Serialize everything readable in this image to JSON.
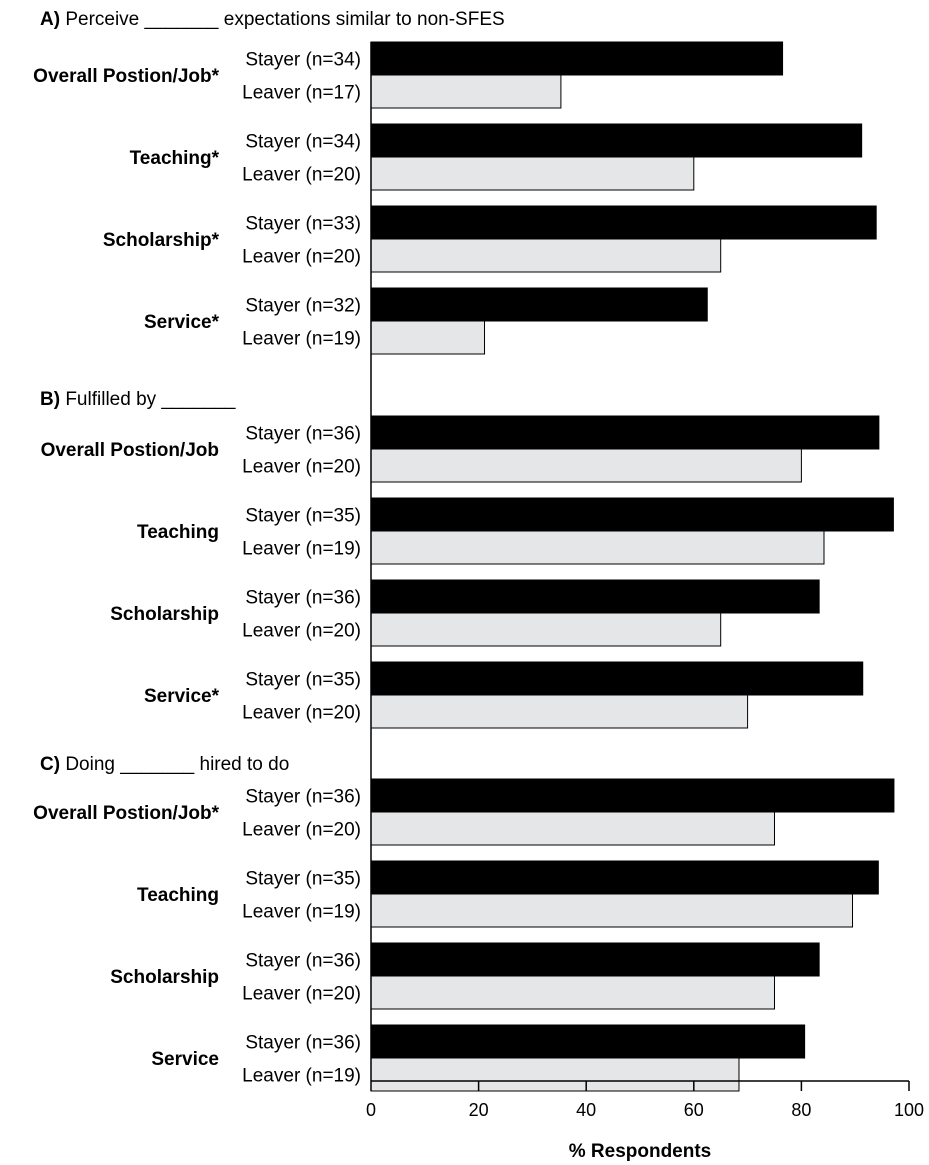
{
  "chart_data": {
    "type": "bar",
    "orientation": "horizontal",
    "xlabel": "% Respondents",
    "xlim": [
      0,
      100
    ],
    "xticks": [
      0,
      20,
      40,
      60,
      80,
      100
    ],
    "colors": {
      "Stayer": "#000000",
      "Leaver": "#e4e6e7",
      "outline": "#000000"
    },
    "panels": [
      {
        "letter": "A)",
        "title": "Perceive _______ expectations similar to non-SFES",
        "groups": [
          {
            "label": "Overall Postion/Job*",
            "bars": [
              {
                "series": "Stayer",
                "label": "Stayer (n=34)",
                "value": 76.5
              },
              {
                "series": "Leaver",
                "label": "Leaver (n=17)",
                "value": 35.3
              }
            ]
          },
          {
            "label": "Teaching*",
            "bars": [
              {
                "series": "Stayer",
                "label": "Stayer (n=34)",
                "value": 91.2
              },
              {
                "series": "Leaver",
                "label": "Leaver (n=20)",
                "value": 60.0
              }
            ]
          },
          {
            "label": "Scholarship*",
            "bars": [
              {
                "series": "Stayer",
                "label": "Stayer (n=33)",
                "value": 93.9
              },
              {
                "series": "Leaver",
                "label": "Leaver (n=20)",
                "value": 65.0
              }
            ]
          },
          {
            "label": "Service*",
            "bars": [
              {
                "series": "Stayer",
                "label": "Stayer (n=32)",
                "value": 62.5
              },
              {
                "series": "Leaver",
                "label": "Leaver (n=19)",
                "value": 21.1
              }
            ]
          }
        ]
      },
      {
        "letter": "B)",
        "title": "Fulfilled by _______",
        "groups": [
          {
            "label": "Overall Postion/Job",
            "bars": [
              {
                "series": "Stayer",
                "label": "Stayer (n=36)",
                "value": 94.4
              },
              {
                "series": "Leaver",
                "label": "Leaver (n=20)",
                "value": 80.0
              }
            ]
          },
          {
            "label": "Teaching",
            "bars": [
              {
                "series": "Stayer",
                "label": "Stayer (n=35)",
                "value": 97.1
              },
              {
                "series": "Leaver",
                "label": "Leaver (n=19)",
                "value": 84.2
              }
            ]
          },
          {
            "label": "Scholarship",
            "bars": [
              {
                "series": "Stayer",
                "label": "Stayer (n=36)",
                "value": 83.3
              },
              {
                "series": "Leaver",
                "label": "Leaver (n=20)",
                "value": 65.0
              }
            ]
          },
          {
            "label": "Service*",
            "bars": [
              {
                "series": "Stayer",
                "label": "Stayer (n=35)",
                "value": 91.4
              },
              {
                "series": "Leaver",
                "label": "Leaver (n=20)",
                "value": 70.0
              }
            ]
          }
        ]
      },
      {
        "letter": "C)",
        "title": "Doing _______ hired to do",
        "groups": [
          {
            "label": "Overall Postion/Job*",
            "bars": [
              {
                "series": "Stayer",
                "label": "Stayer (n=36)",
                "value": 97.2
              },
              {
                "series": "Leaver",
                "label": "Leaver (n=20)",
                "value": 75.0
              }
            ]
          },
          {
            "label": "Teaching",
            "bars": [
              {
                "series": "Stayer",
                "label": "Stayer (n=35)",
                "value": 94.3
              },
              {
                "series": "Leaver",
                "label": "Leaver (n=19)",
                "value": 89.5
              }
            ]
          },
          {
            "label": "Scholarship",
            "bars": [
              {
                "series": "Stayer",
                "label": "Stayer (n=36)",
                "value": 83.3
              },
              {
                "series": "Leaver",
                "label": "Leaver (n=20)",
                "value": 75.0
              }
            ]
          },
          {
            "label": "Service",
            "bars": [
              {
                "series": "Stayer",
                "label": "Stayer (n=36)",
                "value": 80.6
              },
              {
                "series": "Leaver",
                "label": "Leaver (n=19)",
                "value": 68.4
              }
            ]
          }
        ]
      }
    ]
  }
}
